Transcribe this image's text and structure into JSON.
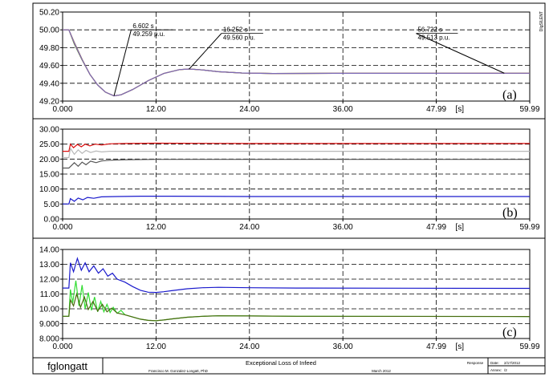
{
  "footer": {
    "brand": "fglongatt",
    "title": "Exceptional Loss of Infeed",
    "author": "Francisco M. Gonzalez-Longatt, PhD",
    "date_text": "March 2012",
    "response_label": "Response",
    "date_label": "Date:",
    "date_value": "2/17/2012",
    "annex_label": "Annex:",
    "annex_value": "/2"
  },
  "side_label": "DIgSILENT",
  "chart_data": [
    {
      "type": "line",
      "panel_tag": "(a)",
      "xunit": "[s]",
      "xlim": [
        0,
        59.99
      ],
      "xticks": [
        "0.000",
        "12.00",
        "24.00",
        "36.00",
        "47.99",
        "59.99"
      ],
      "ylim": [
        49.2,
        50.2
      ],
      "yticks": [
        "49.20",
        "49.40",
        "49.60",
        "49.80",
        "50.00",
        "50.20"
      ],
      "grid": true,
      "series": [
        {
          "color": "#c8a020",
          "points": [
            [
              0,
              50.0
            ],
            [
              0.8,
              50.0
            ],
            [
              1.5,
              49.86
            ],
            [
              2.5,
              49.67
            ],
            [
              3.5,
              49.5
            ],
            [
              4.5,
              49.38
            ],
            [
              5.5,
              49.3
            ],
            [
              6.6,
              49.259
            ],
            [
              7.5,
              49.27
            ],
            [
              9,
              49.33
            ],
            [
              11,
              49.43
            ],
            [
              13,
              49.51
            ],
            [
              15,
              49.553
            ],
            [
              16.25,
              49.56
            ],
            [
              18,
              49.55
            ],
            [
              20,
              49.53
            ],
            [
              23,
              49.515
            ],
            [
              27,
              49.51
            ],
            [
              35,
              49.512
            ],
            [
              59.99,
              49.513
            ]
          ]
        },
        {
          "color": "#3a9a3a",
          "points": [
            [
              0,
              50.0
            ],
            [
              0.8,
              50.0
            ],
            [
              1.5,
              49.84
            ],
            [
              2.5,
              49.66
            ],
            [
              3.5,
              49.5
            ],
            [
              4.5,
              49.38
            ],
            [
              5.5,
              49.3
            ],
            [
              6.6,
              49.259
            ],
            [
              7.5,
              49.27
            ],
            [
              9,
              49.33
            ],
            [
              11,
              49.43
            ],
            [
              13,
              49.51
            ],
            [
              15,
              49.553
            ],
            [
              16.25,
              49.56
            ],
            [
              18,
              49.55
            ],
            [
              20,
              49.53
            ],
            [
              23,
              49.515
            ],
            [
              27,
              49.51
            ],
            [
              35,
              49.512
            ],
            [
              59.99,
              49.513
            ]
          ]
        },
        {
          "color": "#e06050",
          "points": [
            [
              0,
              50.0
            ],
            [
              0.8,
              50.0
            ],
            [
              1.5,
              49.85
            ],
            [
              2.5,
              49.665
            ],
            [
              3.5,
              49.5
            ],
            [
              4.5,
              49.38
            ],
            [
              5.5,
              49.3
            ],
            [
              6.6,
              49.259
            ],
            [
              7.5,
              49.27
            ],
            [
              9,
              49.33
            ],
            [
              11,
              49.43
            ],
            [
              13,
              49.51
            ],
            [
              15,
              49.553
            ],
            [
              16.25,
              49.56
            ],
            [
              18,
              49.55
            ],
            [
              20,
              49.53
            ],
            [
              23,
              49.515
            ],
            [
              27,
              49.51
            ],
            [
              35,
              49.512
            ],
            [
              59.99,
              49.513
            ]
          ]
        },
        {
          "color": "#7a6ab8",
          "points": [
            [
              0,
              50.0
            ],
            [
              0.8,
              50.0
            ],
            [
              1.5,
              49.855
            ],
            [
              2.5,
              49.668
            ],
            [
              3.5,
              49.5
            ],
            [
              4.5,
              49.38
            ],
            [
              5.5,
              49.3
            ],
            [
              6.6,
              49.259
            ],
            [
              7.5,
              49.27
            ],
            [
              9,
              49.33
            ],
            [
              11,
              49.43
            ],
            [
              13,
              49.51
            ],
            [
              15,
              49.553
            ],
            [
              16.25,
              49.56
            ],
            [
              18,
              49.55
            ],
            [
              20,
              49.53
            ],
            [
              23,
              49.515
            ],
            [
              27,
              49.51
            ],
            [
              35,
              49.512
            ],
            [
              59.99,
              49.513
            ]
          ]
        }
      ],
      "annotations": [
        {
          "time": "6.602 s",
          "value": "49.259 p.u.",
          "x": 6.602,
          "y": 49.259,
          "label_x": 8.8,
          "label_y": 50.0
        },
        {
          "time": "16.252 s",
          "value": "49.560 p.u.",
          "x": 16.252,
          "y": 49.56,
          "label_x": 20.4,
          "label_y": 49.96
        },
        {
          "time": "56.722 s",
          "value": "49.513 p.u.",
          "x": 56.722,
          "y": 49.513,
          "label_x": 45.4,
          "label_y": 49.96
        }
      ]
    },
    {
      "type": "line",
      "panel_tag": "(b)",
      "xunit": "[s]",
      "xlim": [
        0,
        59.99
      ],
      "xticks": [
        "0.000",
        "12.00",
        "24.00",
        "36.00",
        "47.99",
        "59.99"
      ],
      "ylim": [
        0,
        30
      ],
      "yticks": [
        "0.00",
        "5.00",
        "10.00",
        "15.00",
        "20.00",
        "25.00",
        "30.00"
      ],
      "grid": true,
      "series": [
        {
          "color": "#dd1111",
          "points": [
            [
              0,
              22.6
            ],
            [
              0.8,
              22.6
            ],
            [
              1.0,
              25.0
            ],
            [
              1.4,
              23.8
            ],
            [
              1.9,
              24.9
            ],
            [
              2.4,
              24.1
            ],
            [
              2.9,
              25.0
            ],
            [
              3.5,
              24.4
            ],
            [
              4.2,
              25.0
            ],
            [
              5,
              24.7
            ],
            [
              6,
              25.1
            ],
            [
              8,
              25.2
            ],
            [
              12,
              25.3
            ],
            [
              24,
              25.2
            ],
            [
              59.99,
              25.2
            ]
          ]
        },
        {
          "color": "#b8b8b8",
          "points": [
            [
              0,
              20.5
            ],
            [
              0.8,
              20.5
            ],
            [
              1.0,
              23.6
            ],
            [
              1.5,
              21.6
            ],
            [
              2.0,
              23.1
            ],
            [
              2.5,
              21.9
            ],
            [
              3.0,
              22.9
            ],
            [
              3.6,
              22.2
            ],
            [
              4.3,
              22.7
            ],
            [
              5,
              22.4
            ],
            [
              6,
              22.6
            ],
            [
              8,
              22.6
            ],
            [
              12,
              22.6
            ],
            [
              59.99,
              22.6
            ]
          ]
        },
        {
          "color": "#555555",
          "points": [
            [
              0,
              17.0
            ],
            [
              0.8,
              17.0
            ],
            [
              1.0,
              17.5
            ],
            [
              1.5,
              18.8
            ],
            [
              2.0,
              17.6
            ],
            [
              2.5,
              19.0
            ],
            [
              3.0,
              18.1
            ],
            [
              3.6,
              19.3
            ],
            [
              4.3,
              18.8
            ],
            [
              5,
              19.4
            ],
            [
              6,
              19.6
            ],
            [
              8,
              19.8
            ],
            [
              12,
              19.9
            ],
            [
              59.99,
              19.9
            ]
          ]
        },
        {
          "color": "#1a1acc",
          "points": [
            [
              0,
              5.0
            ],
            [
              0.8,
              5.0
            ],
            [
              1.0,
              6.8
            ],
            [
              1.5,
              5.9
            ],
            [
              2.0,
              7.0
            ],
            [
              2.6,
              6.4
            ],
            [
              3.2,
              7.2
            ],
            [
              4,
              6.9
            ],
            [
              5,
              7.4
            ],
            [
              7,
              7.5
            ],
            [
              10,
              7.6
            ],
            [
              14,
              7.6
            ],
            [
              24,
              7.5
            ],
            [
              59.99,
              7.5
            ]
          ]
        }
      ]
    },
    {
      "type": "line",
      "panel_tag": "(c)",
      "xunit": "[s]",
      "xlim": [
        0,
        59.99
      ],
      "xticks": [
        "0.000",
        "12.00",
        "24.00",
        "36.00",
        "47.99",
        "59.99"
      ],
      "ylim": [
        8,
        14
      ],
      "yticks": [
        "8.000",
        "9.000",
        "10.00",
        "11.00",
        "12.00",
        "13.00",
        "14.00"
      ],
      "grid": true,
      "series": [
        {
          "color": "#1a1acc",
          "points": [
            [
              0,
              11.4
            ],
            [
              0.8,
              11.4
            ],
            [
              1.0,
              13.1
            ],
            [
              1.4,
              12.5
            ],
            [
              1.9,
              13.4
            ],
            [
              2.4,
              12.6
            ],
            [
              2.9,
              13.1
            ],
            [
              3.4,
              12.5
            ],
            [
              4.0,
              12.9
            ],
            [
              4.6,
              12.4
            ],
            [
              5.2,
              12.7
            ],
            [
              5.8,
              12.2
            ],
            [
              6.4,
              12.4
            ],
            [
              7,
              12.0
            ],
            [
              8,
              11.8
            ],
            [
              9,
              11.5
            ],
            [
              10,
              11.25
            ],
            [
              11,
              11.12
            ],
            [
              12,
              11.1
            ],
            [
              13,
              11.15
            ],
            [
              14,
              11.22
            ],
            [
              16,
              11.35
            ],
            [
              18,
              11.42
            ],
            [
              20,
              11.45
            ],
            [
              24,
              11.42
            ],
            [
              30,
              11.4
            ],
            [
              59.99,
              11.38
            ]
          ]
        },
        {
          "color": "#33dd33",
          "points": [
            [
              0,
              9.5
            ],
            [
              0.8,
              9.5
            ],
            [
              1.0,
              11.3
            ],
            [
              1.3,
              10.4
            ],
            [
              1.7,
              11.9
            ],
            [
              2.1,
              10.2
            ],
            [
              2.5,
              11.6
            ],
            [
              2.9,
              10.0
            ],
            [
              3.3,
              11.1
            ],
            [
              3.7,
              9.9
            ],
            [
              4.1,
              10.8
            ],
            [
              4.5,
              9.8
            ],
            [
              4.9,
              10.5
            ],
            [
              5.3,
              9.8
            ],
            [
              5.7,
              10.3
            ],
            [
              6.1,
              9.75
            ],
            [
              6.5,
              10.1
            ],
            [
              7,
              9.7
            ],
            [
              7.5,
              9.9
            ],
            [
              8,
              9.6
            ],
            [
              9,
              9.45
            ],
            [
              10,
              9.3
            ],
            [
              11,
              9.22
            ],
            [
              12,
              9.2
            ],
            [
              13,
              9.25
            ],
            [
              14,
              9.32
            ],
            [
              16,
              9.43
            ],
            [
              18,
              9.5
            ],
            [
              20,
              9.53
            ],
            [
              24,
              9.52
            ],
            [
              30,
              9.5
            ],
            [
              59.99,
              9.48
            ]
          ]
        },
        {
          "color": "#4a6a10",
          "points": [
            [
              0,
              9.5
            ],
            [
              0.8,
              9.5
            ],
            [
              1.0,
              10.6
            ],
            [
              1.4,
              10.2
            ],
            [
              1.8,
              11.0
            ],
            [
              2.3,
              10.1
            ],
            [
              2.8,
              10.8
            ],
            [
              3.3,
              9.95
            ],
            [
              3.9,
              10.5
            ],
            [
              4.5,
              9.85
            ],
            [
              5.1,
              10.3
            ],
            [
              5.7,
              9.8
            ],
            [
              6.3,
              10.05
            ],
            [
              7,
              9.72
            ],
            [
              8,
              9.6
            ],
            [
              9,
              9.45
            ],
            [
              10,
              9.3
            ],
            [
              11,
              9.22
            ],
            [
              12,
              9.2
            ],
            [
              13,
              9.25
            ],
            [
              14,
              9.32
            ],
            [
              16,
              9.43
            ],
            [
              18,
              9.5
            ],
            [
              20,
              9.53
            ],
            [
              24,
              9.52
            ],
            [
              30,
              9.5
            ],
            [
              59.99,
              9.48
            ]
          ]
        }
      ]
    }
  ]
}
